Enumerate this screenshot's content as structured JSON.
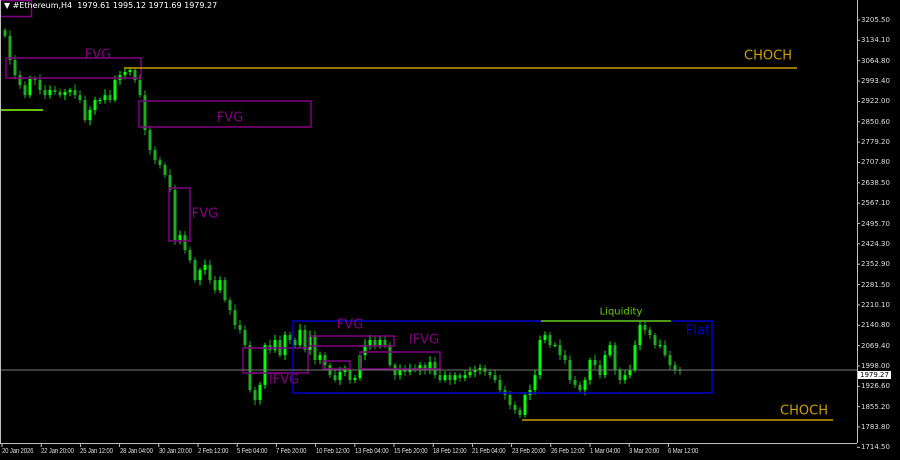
{
  "header": {
    "symbol": "#Ethereum,H4",
    "ohlc": "1979.61 1995.12 1971.69 1979.27"
  },
  "current_price": "1979.27",
  "colors": {
    "bull": "#00ff00",
    "bear": "#22aa22",
    "fvg": "#800080",
    "choch": "#c8a000",
    "flat": "#0000cc",
    "liquidity": "#66cc00",
    "grid": "#c0c0c0"
  },
  "annotations": {
    "fvg1": "FVG",
    "fvg2": "FVG",
    "fvg3": "FVG",
    "fvg4": "FVG",
    "ifvg1": "IFVG",
    "ifvg2": "IFVG",
    "flat": "Flat",
    "liquidity": "Liquidity",
    "choch_top": "CHOCH",
    "choch_bottom": "CHOCH"
  },
  "chart_data": {
    "type": "candlestick",
    "title": "#Ethereum,H4",
    "ylim": [
      1714.5,
      3240
    ],
    "y_ticks": [
      "3205.50",
      "3134.10",
      "3064.80",
      "2993.40",
      "2922.00",
      "2850.60",
      "2779.20",
      "2707.80",
      "2638.50",
      "2567.10",
      "2495.70",
      "2424.30",
      "2352.90",
      "2281.50",
      "2210.10",
      "2140.80",
      "2069.40",
      "1998.00",
      "1926.60",
      "1855.20",
      "1783.80",
      "1714.50"
    ],
    "x_ticks": [
      "20 Jan 2026",
      "22 Jan 20:00",
      "25 Jan 12:00",
      "28 Jan 04:00",
      "30 Jan 20:00",
      "2 Feb 12:00",
      "5 Feb 04:00",
      "7 Feb 20:00",
      "10 Feb 12:00",
      "13 Feb 04:00",
      "15 Feb 20:00",
      "18 Feb 12:00",
      "21 Feb 04:00",
      "23 Feb 20:00",
      "26 Feb 12:00",
      "1 Mar 04:00",
      "3 Mar 20:00",
      "6 Mar 12:00"
    ],
    "closes": [
      3150,
      3066,
      3013,
      2978,
      2943,
      3000,
      2996,
      2961,
      2943,
      2961,
      2954,
      2943,
      2954,
      2961,
      2943,
      2926,
      2856,
      2891,
      2926,
      2926,
      2943,
      2926,
      2996,
      3013,
      3024,
      3031,
      2996,
      2943,
      2821,
      2751,
      2716,
      2699,
      2664,
      2612,
      2437,
      2454,
      2402,
      2367,
      2297,
      2332,
      2350,
      2297,
      2262,
      2297,
      2227,
      2192,
      2140,
      2123,
      2070,
      1913,
      1878,
      1931,
      2070,
      2053,
      2088,
      2035,
      2105,
      2088,
      2070,
      2123,
      2053,
      2105,
      2018,
      2035,
      2000,
      1965,
      1948,
      1976,
      1983,
      1948,
      1955,
      2035,
      2070,
      2088,
      2070,
      2088,
      2070,
      2000,
      1965,
      1983,
      1976,
      1990,
      1983,
      2000,
      1983,
      2011,
      1965,
      1948,
      1965,
      1948,
      1965,
      1955,
      1965,
      1976,
      1983,
      1990,
      1976,
      1965,
      1948,
      1913,
      1896,
      1861,
      1843,
      1826,
      1896,
      1913,
      1965,
      2088,
      2105,
      2070,
      2070,
      2035,
      2018,
      1948,
      1931,
      1913,
      1948,
      2018,
      2000,
      1965,
      2035,
      2070,
      1983,
      1948,
      1965,
      1983,
      2070,
      2140,
      2123,
      2105,
      2070,
      2070,
      2035,
      2000,
      1983,
      1979.27
    ],
    "levels": {
      "choch_top": 3040,
      "choch_bottom": 1790,
      "liquidity": 2140,
      "flat_range": [
        1900,
        2140
      ]
    }
  }
}
